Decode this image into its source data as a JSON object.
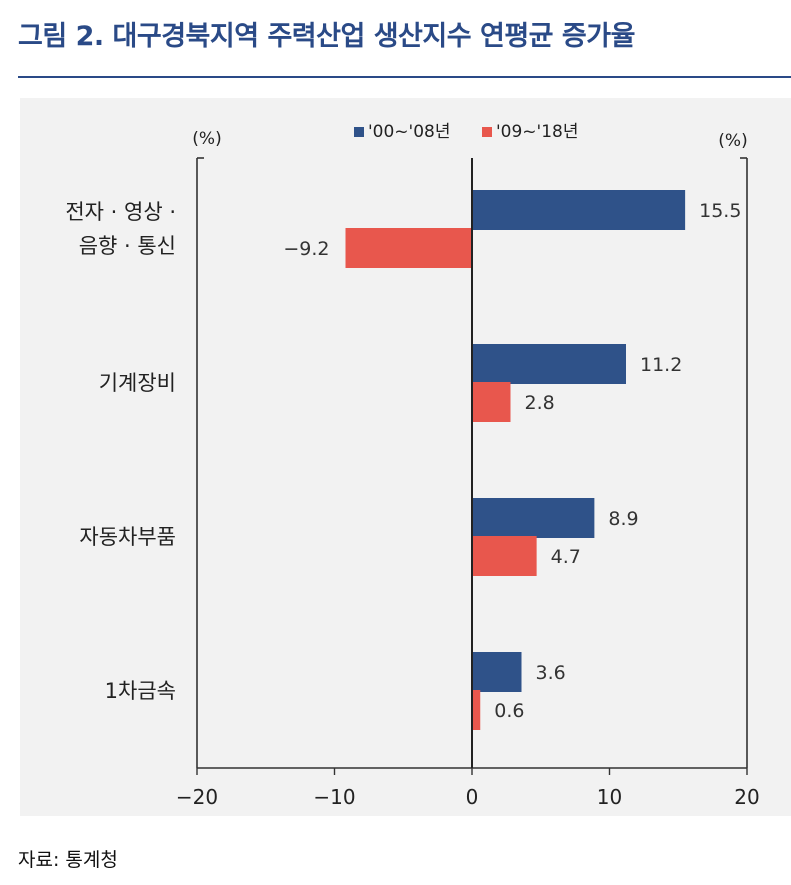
{
  "title": "그림 2. 대구경북지역 주력산업 생산지수 연평균 증가율",
  "source": "자료: 통계청",
  "colors": {
    "title": "#2a4a87",
    "series1": "#2f5289",
    "series2": "#e8574d",
    "panel": "#f2f2f2"
  },
  "chart_data": {
    "type": "bar",
    "orientation": "horizontal",
    "categories": [
      [
        "전자 · 영상 ·",
        "음향 · 통신"
      ],
      [
        "기계장비"
      ],
      [
        "자동차부품"
      ],
      [
        "1차금속"
      ]
    ],
    "series": [
      {
        "name": "'00~'08년",
        "color": "#2f5289",
        "values": [
          15.5,
          11.2,
          8.9,
          3.6
        ]
      },
      {
        "name": "'09~'18년",
        "color": "#e8574d",
        "values": [
          -9.2,
          2.8,
          4.7,
          0.6
        ]
      }
    ],
    "data_labels": [
      [
        "15.5",
        "11.2",
        "8.9",
        "3.6"
      ],
      [
        "−9.2",
        "2.8",
        "4.7",
        "0.6"
      ]
    ],
    "xlim": [
      -20,
      20
    ],
    "xticks": [
      -20,
      -10,
      0,
      10,
      20
    ],
    "xtick_labels": [
      "−20",
      "−10",
      "0",
      "10",
      "20"
    ],
    "unit_left": "(%)",
    "unit_right": "(%)",
    "legend_position": "top-center",
    "grid": false
  }
}
